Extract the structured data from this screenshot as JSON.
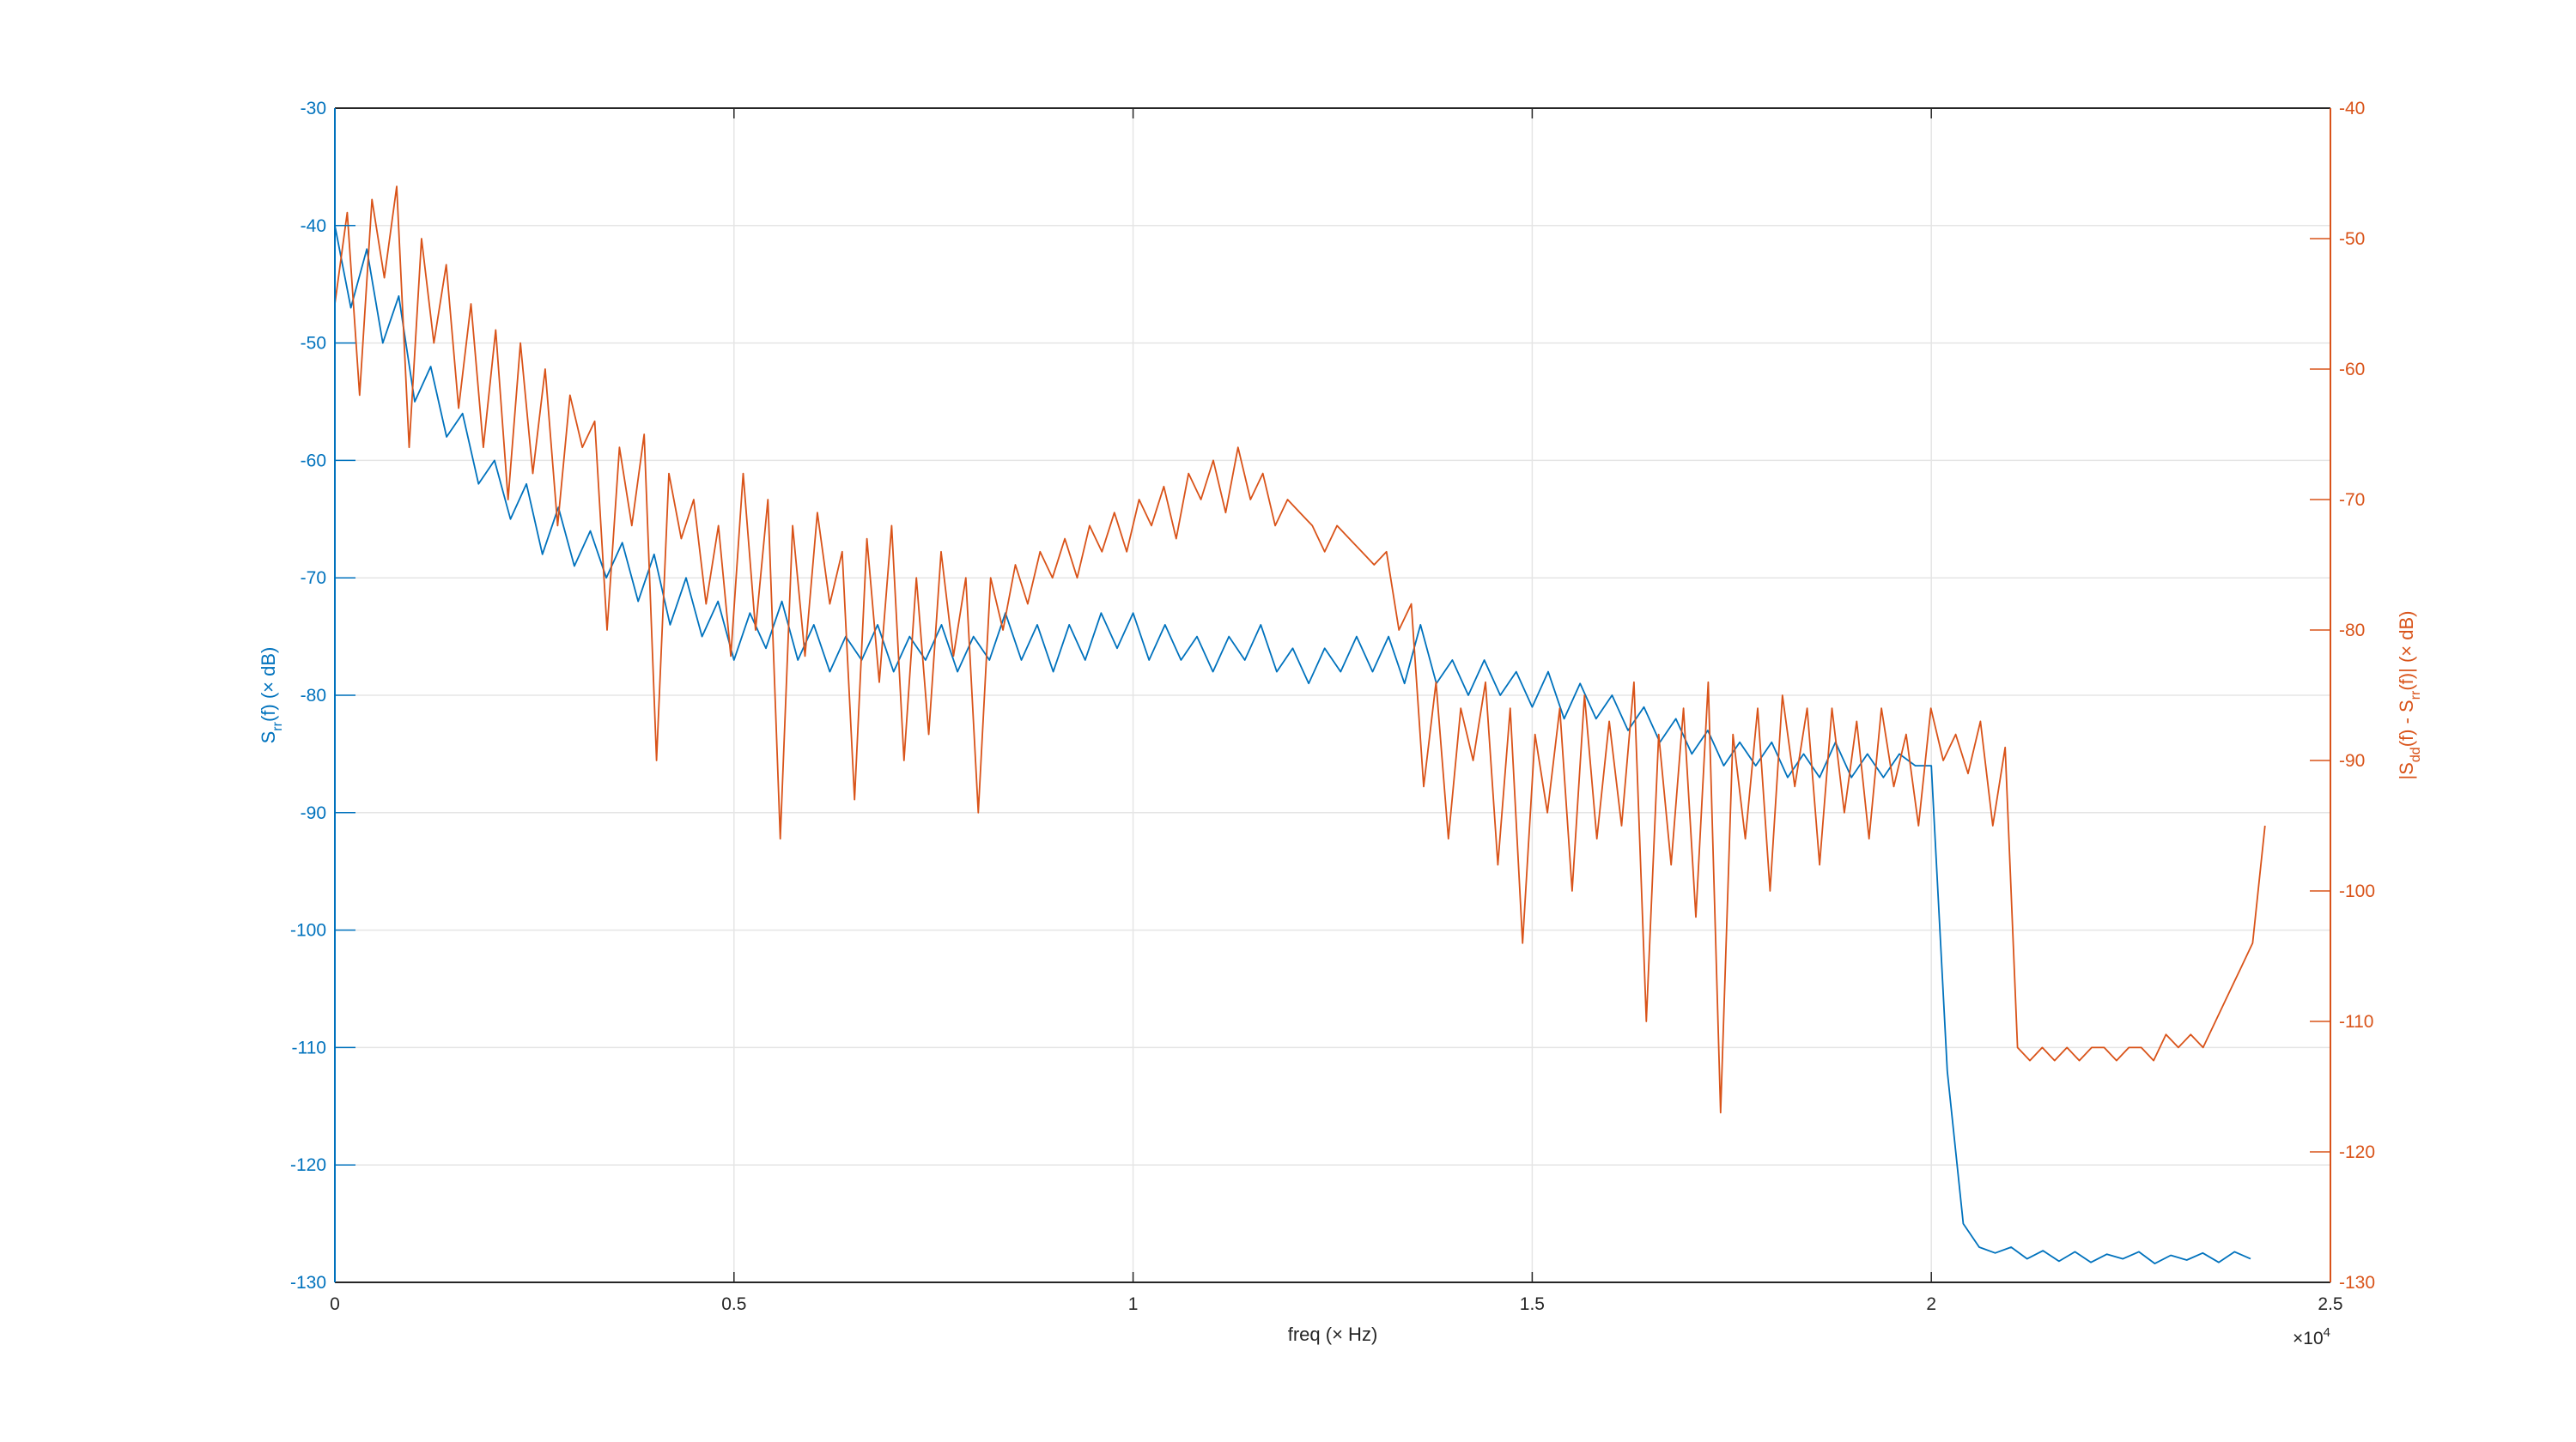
{
  "chart_data": {
    "type": "line",
    "title": "",
    "xlabel": "freq (× Hz)",
    "xlabel_parts": {
      "main": "freq (",
      "times": "×",
      "unit": " Hz)"
    },
    "x_exponent_label": {
      "base": "×10",
      "exp": "4"
    },
    "xlim": [
      0,
      25000
    ],
    "xticks": [
      0,
      5000,
      10000,
      15000,
      20000,
      25000
    ],
    "xtick_labels": [
      "0",
      "0.5",
      "1",
      "1.5",
      "2",
      "2.5"
    ],
    "grid": true,
    "colors": {
      "left": "#0072BD",
      "right": "#D95319",
      "axis": "#262626",
      "grid": "#e5e5e5"
    },
    "left_axis": {
      "label_parts": {
        "s": "S",
        "sub": "rr",
        "rest": "(f) (× dB)"
      },
      "ylim": [
        -130,
        -30
      ],
      "ticks": [
        -130,
        -120,
        -110,
        -100,
        -90,
        -80,
        -70,
        -60,
        -50,
        -40,
        -30
      ],
      "tick_labels": [
        "-130",
        "-120",
        "-110",
        "-100",
        "-90",
        "-80",
        "-70",
        "-60",
        "-50",
        "-40",
        "-30"
      ]
    },
    "right_axis": {
      "label_parts": {
        "a": "|S",
        "sub1": "dd",
        "b": "(f) - S",
        "sub2": "rr",
        "c": "(f)| (× dB)"
      },
      "ylim": [
        -130,
        -40
      ],
      "ticks": [
        -130,
        -120,
        -110,
        -100,
        -90,
        -80,
        -70,
        -60,
        -50,
        -40
      ],
      "tick_labels": [
        "-130",
        "-120",
        "-110",
        "-100",
        "-90",
        "-80",
        "-70",
        "-60",
        "-50",
        "-40"
      ]
    },
    "x_step": 200,
    "series": [
      {
        "name": "S_rr(f)",
        "axis": "left",
        "color": "#0072BD",
        "values": [
          -40,
          -47,
          -42,
          -50,
          -46,
          -55,
          -52,
          -58,
          -56,
          -62,
          -60,
          -65,
          -62,
          -68,
          -64,
          -69,
          -66,
          -70,
          -67,
          -72,
          -68,
          -74,
          -70,
          -75,
          -72,
          -77,
          -73,
          -76,
          -72,
          -77,
          -74,
          -78,
          -75,
          -77,
          -74,
          -78,
          -75,
          -77,
          -74,
          -78,
          -75,
          -77,
          -73,
          -77,
          -74,
          -78,
          -74,
          -77,
          -73,
          -76,
          -73,
          -77,
          -74,
          -77,
          -75,
          -78,
          -75,
          -77,
          -74,
          -78,
          -76,
          -79,
          -76,
          -78,
          -75,
          -78,
          -75,
          -79,
          -74,
          -79,
          -77,
          -80,
          -77,
          -80,
          -78,
          -81,
          -78,
          -82,
          -79,
          -82,
          -80,
          -83,
          -81,
          -84,
          -82,
          -85,
          -83,
          -86,
          -84,
          -86,
          -84,
          -87,
          -85,
          -87,
          -84,
          -87,
          -85,
          -87,
          -85,
          -86,
          -86,
          -112,
          -125,
          -127,
          -127.5,
          -127,
          -128,
          -127.3,
          -128.2,
          -127.4,
          -128.3,
          -127.6,
          -128,
          -127.4,
          -128.4,
          -127.7,
          -128.1,
          -127.5,
          -128.3,
          -127.4,
          -128
        ]
      },
      {
        "name": "|S_dd(f) - S_rr(f)|",
        "axis": "right",
        "color": "#D95319",
        "values": [
          -55,
          -48,
          -62,
          -47,
          -53,
          -46,
          -66,
          -50,
          -58,
          -52,
          -63,
          -55,
          -66,
          -57,
          -70,
          -58,
          -68,
          -60,
          -72,
          -62,
          -66,
          -64,
          -80,
          -66,
          -72,
          -65,
          -90,
          -68,
          -73,
          -70,
          -78,
          -72,
          -82,
          -68,
          -80,
          -70,
          -96,
          -72,
          -82,
          -71,
          -78,
          -74,
          -93,
          -73,
          -84,
          -72,
          -90,
          -76,
          -88,
          -74,
          -82,
          -76,
          -94,
          -76,
          -80,
          -75,
          -78,
          -74,
          -76,
          -73,
          -76,
          -72,
          -74,
          -71,
          -74,
          -70,
          -72,
          -69,
          -73,
          -68,
          -70,
          -67,
          -71,
          -66,
          -70,
          -68,
          -72,
          -70,
          -71,
          -72,
          -74,
          -72,
          -73,
          -74,
          -75,
          -74,
          -80,
          -78,
          -92,
          -84,
          -96,
          -86,
          -90,
          -84,
          -98,
          -86,
          -104,
          -88,
          -94,
          -86,
          -100,
          -85,
          -96,
          -87,
          -95,
          -84,
          -110,
          -88,
          -98,
          -86,
          -102,
          -84,
          -117,
          -88,
          -96,
          -86,
          -100,
          -85,
          -92,
          -86,
          -98,
          -86,
          -94,
          -87,
          -96,
          -86,
          -92,
          -88,
          -95,
          -86,
          -90,
          -88,
          -91,
          -87,
          -95,
          -89,
          -112,
          -113,
          -112,
          -113,
          -112,
          -113,
          -112,
          -112,
          -113,
          -112,
          -112,
          -113,
          -111,
          -112,
          -111,
          -112,
          -110,
          -108,
          -106,
          -104,
          -95
        ]
      }
    ],
    "right_series_x_step": 155
  }
}
